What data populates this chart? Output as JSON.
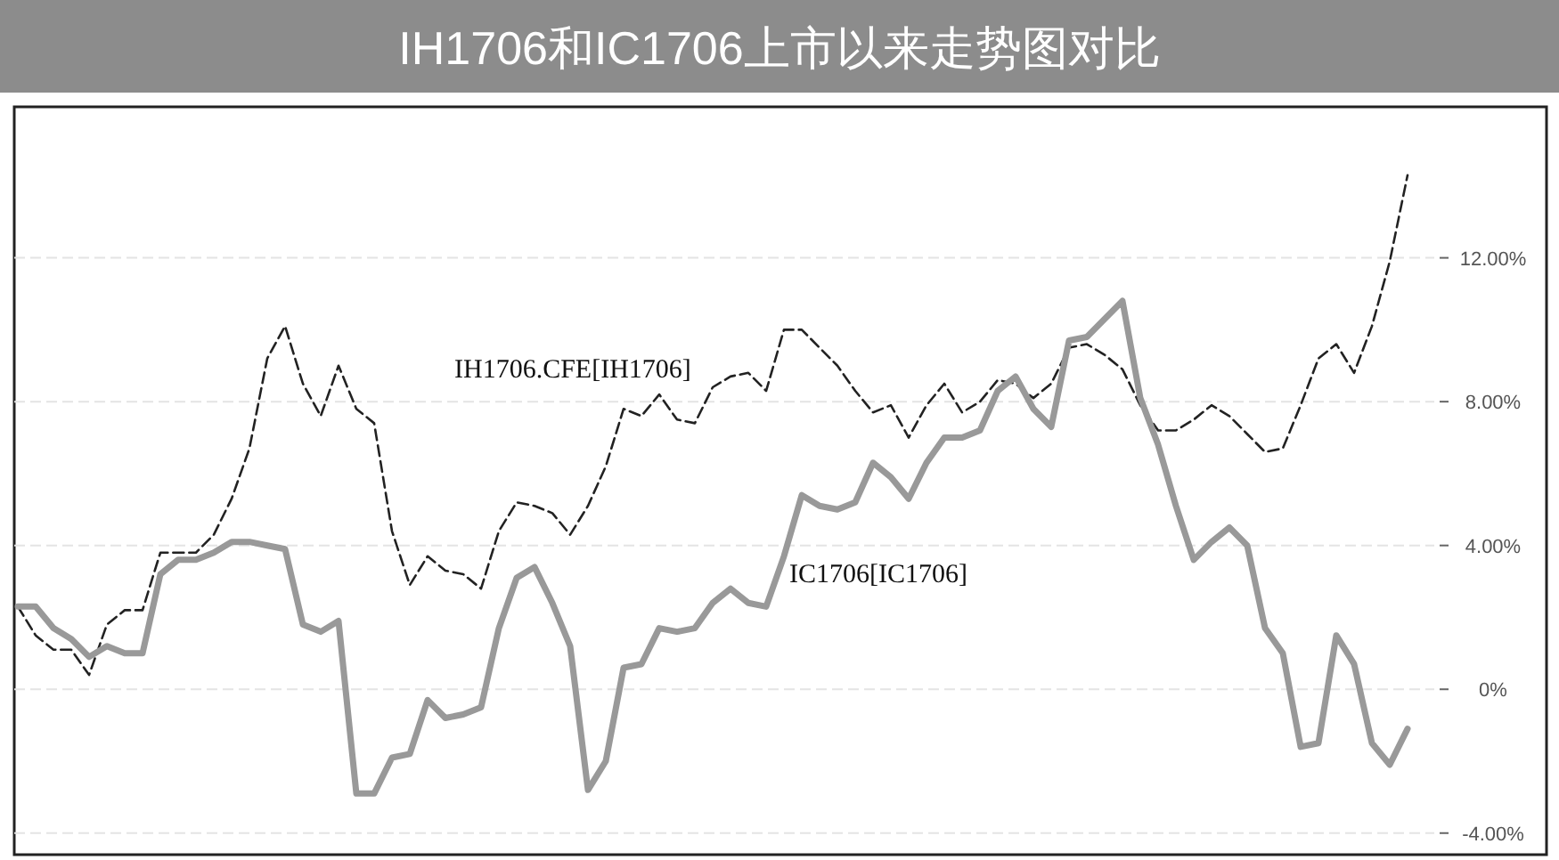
{
  "chart_data": {
    "type": "line",
    "title": "IH1706和IC1706上市以来走势图对比",
    "categories": [
      null,
      null,
      null,
      null,
      null,
      null,
      null,
      null,
      null,
      null,
      null,
      null,
      null,
      null,
      null,
      null,
      null,
      null,
      null,
      null,
      null,
      null,
      null,
      null,
      null,
      null,
      null,
      null,
      null,
      null,
      null,
      null,
      null,
      null,
      null,
      null,
      null,
      null,
      null,
      null,
      null,
      null,
      null,
      null,
      null,
      null,
      null,
      null,
      null,
      null,
      null,
      null,
      null,
      null,
      null,
      null,
      null,
      null,
      null,
      null,
      null,
      null,
      null,
      null,
      null,
      null,
      null,
      null,
      null,
      null,
      null,
      null,
      null,
      null,
      null,
      null,
      null,
      null,
      null
    ],
    "series": [
      {
        "name": "IH1706.CFE[IH1706]",
        "color": "#222222",
        "line_style": "dashed",
        "values": [
          2.3,
          1.5,
          1.1,
          1.1,
          0.4,
          1.8,
          2.2,
          2.2,
          3.8,
          3.8,
          3.8,
          4.3,
          5.3,
          6.7,
          9.2,
          10.1,
          8.5,
          7.6,
          9.0,
          7.8,
          7.4,
          4.4,
          2.9,
          3.7,
          3.3,
          3.2,
          2.8,
          4.4,
          5.2,
          5.1,
          4.9,
          4.3,
          5.1,
          6.2,
          7.8,
          7.6,
          8.2,
          7.5,
          7.4,
          8.4,
          8.7,
          8.8,
          8.3,
          10.0,
          10.0,
          9.5,
          9.0,
          8.3,
          7.7,
          7.9,
          7.0,
          7.9,
          8.5,
          7.7,
          8.0,
          8.6,
          8.5,
          8.1,
          8.5,
          9.5,
          9.6,
          9.3,
          8.9,
          7.9,
          7.2,
          7.2,
          7.5,
          7.9,
          7.6,
          7.1,
          6.6,
          6.7,
          7.9,
          9.2,
          9.6,
          8.8,
          10.1,
          11.9,
          14.3
        ]
      },
      {
        "name": "IC1706[IC1706]",
        "color": "#999999",
        "line_style": "solid",
        "values": [
          2.3,
          2.3,
          1.7,
          1.4,
          0.9,
          1.2,
          1.0,
          1.0,
          3.2,
          3.6,
          3.6,
          3.8,
          4.1,
          4.1,
          4.0,
          3.9,
          1.8,
          1.6,
          1.9,
          -2.9,
          -2.9,
          -1.9,
          -1.8,
          -0.3,
          -0.8,
          -0.7,
          -0.5,
          1.7,
          3.1,
          3.4,
          2.4,
          1.2,
          -2.8,
          -2.0,
          0.6,
          0.7,
          1.7,
          1.6,
          1.7,
          2.4,
          2.8,
          2.4,
          2.3,
          3.7,
          5.4,
          5.1,
          5.0,
          5.2,
          6.3,
          5.9,
          5.3,
          6.3,
          7.0,
          7.0,
          7.2,
          8.3,
          8.7,
          7.8,
          7.3,
          9.7,
          9.8,
          10.3,
          10.8,
          8.1,
          6.8,
          5.1,
          3.6,
          4.1,
          4.5,
          4.0,
          1.7,
          1.0,
          -1.6,
          -1.5,
          1.5,
          0.7,
          -1.5,
          -2.1,
          -1.1
        ]
      }
    ],
    "ylim": [
      -4.6,
      16.2
    ],
    "yticks": [
      {
        "value": -4,
        "label": "-4.00%"
      },
      {
        "value": 0,
        "label": "0%"
      },
      {
        "value": 4,
        "label": "4.00%"
      },
      {
        "value": 8,
        "label": "8.00%"
      },
      {
        "value": 12,
        "label": "12.00%"
      }
    ],
    "grid": "y",
    "legend": false
  }
}
